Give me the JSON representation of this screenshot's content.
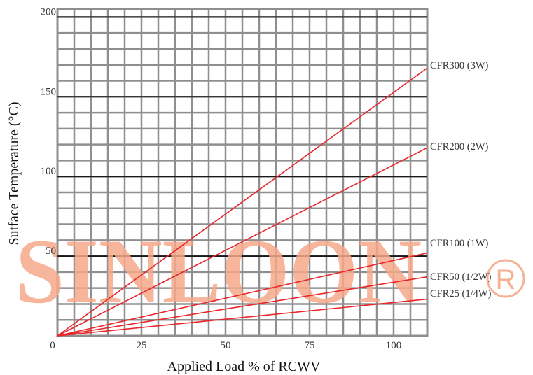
{
  "chart_data": {
    "type": "line",
    "xlabel": "Applied Load % of RCWV",
    "ylabel": "Sutface Temperature (°C)",
    "xlim": [
      0,
      110
    ],
    "ylim": [
      0,
      205
    ],
    "x_ticks": [
      "0",
      "25",
      "50",
      "75",
      "100"
    ],
    "y_ticks": [
      "50",
      "100",
      "150",
      "200"
    ],
    "grid": true,
    "series": [
      {
        "name": "CFR300 (3W)",
        "x": [
          0,
          110
        ],
        "y": [
          0,
          168
        ],
        "color": "#e8262b"
      },
      {
        "name": "CFR200 (2W)",
        "x": [
          0,
          110
        ],
        "y": [
          0,
          118
        ],
        "color": "#e8262b"
      },
      {
        "name": "CFR100 (1W)",
        "x": [
          0,
          110
        ],
        "y": [
          0,
          52
        ],
        "color": "#e8262b"
      },
      {
        "name": "CFR50 (1/2W)",
        "x": [
          0,
          110
        ],
        "y": [
          0,
          37
        ],
        "color": "#e8262b"
      },
      {
        "name": "CFR25 (1/4W)",
        "x": [
          0,
          110
        ],
        "y": [
          0,
          23
        ],
        "color": "#e8262b"
      }
    ]
  },
  "watermark": {
    "text": "SINLOON",
    "mark": "R",
    "color": "#f6a88a"
  }
}
